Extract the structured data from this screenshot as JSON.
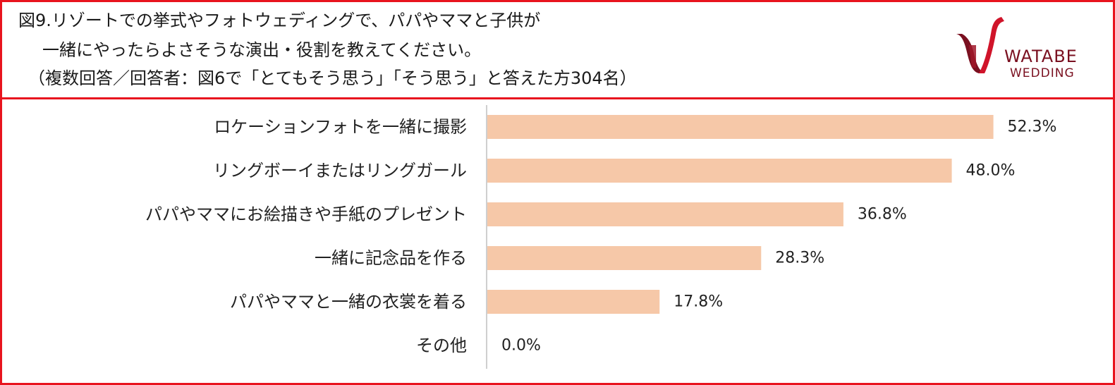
{
  "chart_data": {
    "type": "bar",
    "orientation": "horizontal",
    "title_lines": [
      "図9.リゾートでの挙式やフォトウェディングで、パパやママと子供が",
      "一緒にやったらよさそうな演出・役割を教えてください。",
      "（複数回答／回答者：図6で「とてもそう思う」「そう思う」と答えた方304名）"
    ],
    "categories": [
      "ロケーションフォトを一緒に撮影",
      "リングボーイまたはリングガール",
      "パパやママにお絵描きや手紙のプレゼント",
      "一緒に記念品を作る",
      "パパやママと一緒の衣裳を着る",
      "その他"
    ],
    "values": [
      52.3,
      48.0,
      36.8,
      28.3,
      17.8,
      0.0
    ],
    "value_labels": [
      "52.3%",
      "48.0%",
      "36.8%",
      "28.3%",
      "17.8%",
      "0.0%"
    ],
    "unit": "%",
    "xlim": [
      0,
      60
    ],
    "bar_color": "#f6c8a8",
    "axis_color": "#bfbfbf",
    "grid": false,
    "legend": "none"
  },
  "logo": {
    "brand": "WATABE",
    "sub": "WEDDING",
    "color": "#7a1020",
    "accent": "#d0142a"
  },
  "frame_color": "#e8141e"
}
